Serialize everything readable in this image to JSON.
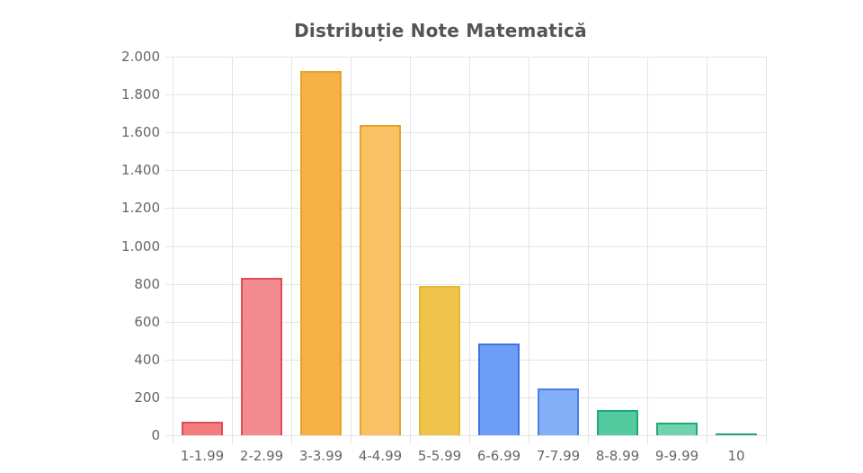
{
  "chart_data": {
    "type": "bar",
    "title": "Distribuție Note Matematică",
    "xlabel": "",
    "ylabel": "",
    "ylim": [
      0,
      2000
    ],
    "yticks": [
      "0",
      "200",
      "400",
      "600",
      "800",
      "1.000",
      "1.200",
      "1.400",
      "1.600",
      "1.800",
      "2.000"
    ],
    "grid": true,
    "legend": "none",
    "categories": [
      "1-1.99",
      "2-2.99",
      "3-3.99",
      "4-4.99",
      "5-5.99",
      "6-6.99",
      "7-7.99",
      "8-8.99",
      "9-9.99",
      "10"
    ],
    "values": [
      70,
      830,
      1925,
      1640,
      790,
      485,
      245,
      135,
      68,
      3
    ],
    "colors": {
      "fill": [
        "#f47c7c",
        "#f28b8f",
        "#f5b146",
        "#f7c164",
        "#eec44a",
        "#6d9ef5",
        "#83aff7",
        "#52cba0",
        "#6fd3ad",
        "#7fd8b8"
      ],
      "border": [
        "#e04c55",
        "#e04c55",
        "#e8a22c",
        "#e8a22c",
        "#e3b83a",
        "#3f74e0",
        "#4d7fe4",
        "#22a876",
        "#22a876",
        "#22a876"
      ]
    }
  }
}
